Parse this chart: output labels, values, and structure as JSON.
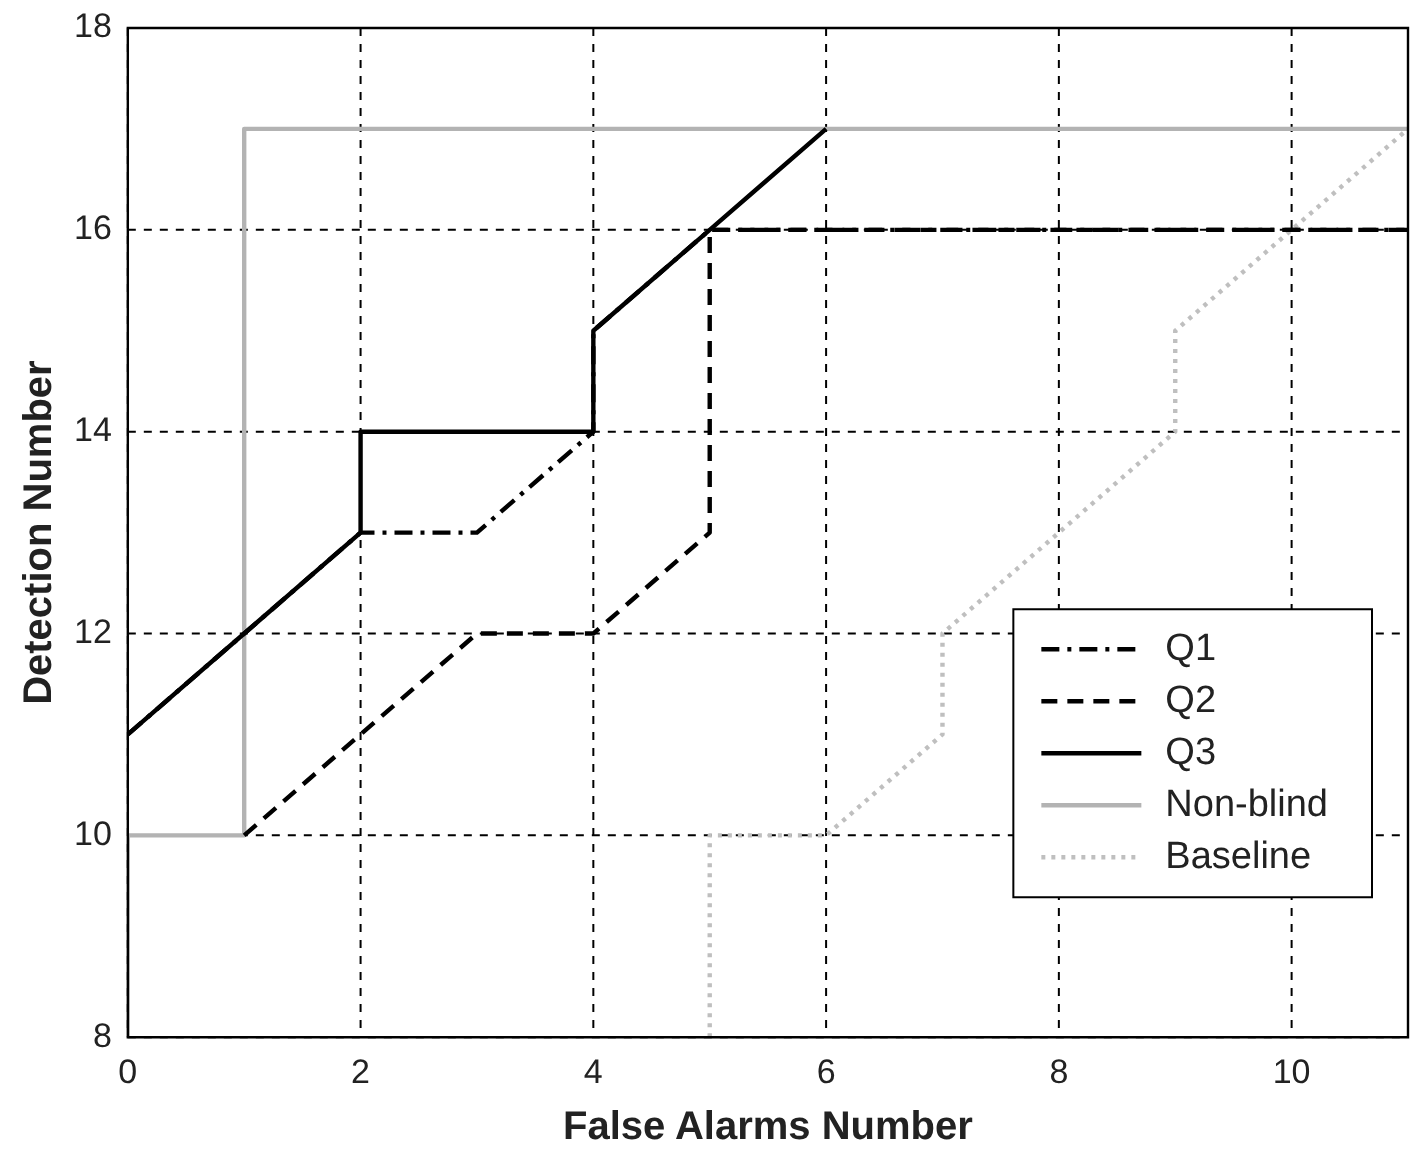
{
  "chart_data": {
    "type": "line",
    "xlabel": "False Alarms Number",
    "ylabel": "Detection Number",
    "xlim": [
      0,
      11
    ],
    "ylim": [
      8,
      18
    ],
    "xticks": [
      0,
      2,
      4,
      6,
      8,
      10
    ],
    "yticks": [
      8,
      10,
      12,
      14,
      16,
      18
    ],
    "grid": true,
    "legend": "bottom right",
    "marker": "none",
    "series": [
      {
        "name": "Q1",
        "color": "#000000",
        "line_style": "dashdot",
        "x": [
          0,
          1,
          2,
          3,
          4,
          4,
          5,
          6,
          7,
          8,
          9,
          10,
          11
        ],
        "values": [
          11,
          12,
          13,
          13,
          14,
          15,
          16,
          16,
          16,
          16,
          16,
          16,
          16
        ]
      },
      {
        "name": "Q2",
        "color": "#000000",
        "line_style": "dashed",
        "x": [
          1,
          2,
          3,
          4,
          5,
          5,
          11
        ],
        "values": [
          10,
          11,
          12,
          12,
          13,
          16,
          16
        ]
      },
      {
        "name": "Q3",
        "color": "#000000",
        "line_style": "solid",
        "x": [
          0,
          1,
          2,
          2,
          4,
          4,
          5,
          6
        ],
        "values": [
          11,
          12,
          13,
          14,
          14,
          15,
          16,
          17
        ]
      },
      {
        "name": "Non-blind",
        "color": "#b3b3b3",
        "line_style": "solid",
        "x": [
          0,
          0,
          1,
          1,
          11
        ],
        "values": [
          8,
          10,
          10,
          17,
          17
        ]
      },
      {
        "name": "Baseline",
        "color": "#bfbfbf",
        "line_style": "dotted",
        "x": [
          5,
          5,
          6,
          7,
          7,
          8,
          9,
          9,
          10,
          11
        ],
        "values": [
          8,
          10,
          10,
          11,
          12,
          13,
          14,
          15,
          16,
          17
        ]
      }
    ]
  }
}
